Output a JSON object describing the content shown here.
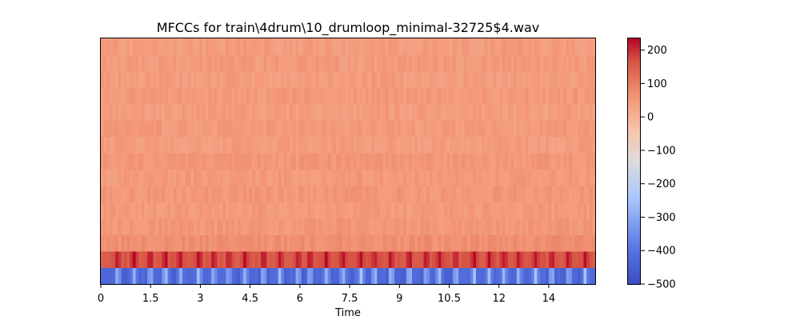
{
  "chart_data": {
    "type": "heatmap",
    "title": "MFCCs for train\\4drum\\10_drumloop_minimal-32725$4.wav",
    "xlabel": "Time",
    "ylabel": "",
    "x_ticks": [
      "0",
      "1.5",
      "3",
      "4.5",
      "6",
      "7.5",
      "9",
      "10.5",
      "12",
      "14"
    ],
    "x_tick_values": [
      0,
      1.5,
      3,
      4.5,
      6,
      7.5,
      9,
      10.5,
      12,
      13.5
    ],
    "xlim": [
      0,
      14.9
    ],
    "n_coefficients": 15,
    "colorbar": {
      "ticks": [
        "200",
        "100",
        "0",
        "−100",
        "−200",
        "−300",
        "−400",
        "−500"
      ],
      "tick_values": [
        200,
        100,
        0,
        -100,
        -200,
        -300,
        -400,
        -500
      ],
      "range": [
        -500,
        235
      ],
      "colormap": "coolwarm"
    },
    "coefficient_mean_values": [
      -440,
      160,
      70,
      55,
      50,
      55,
      50,
      55,
      45,
      50,
      45,
      50,
      45,
      50,
      45
    ],
    "onset_times": [
      0.5,
      1.0,
      1.5,
      1.95,
      2.4,
      2.95,
      3.4,
      3.85,
      4.35,
      4.9,
      5.4,
      5.95,
      6.3,
      6.8,
      7.3,
      7.85,
      8.25,
      8.75,
      9.3,
      9.8,
      10.2,
      10.7,
      11.25,
      11.7,
      12.15,
      12.6,
      13.1,
      13.6,
      14.1,
      14.6
    ],
    "grid": false
  }
}
